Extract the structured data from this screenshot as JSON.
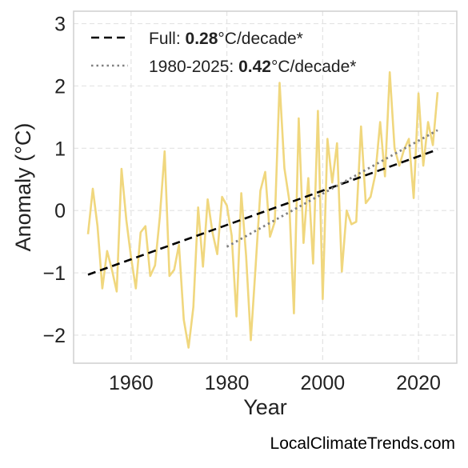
{
  "chart_data": {
    "type": "line",
    "xlabel": "Year",
    "ylabel": "Anomaly (°C)",
    "xlim": [
      1948,
      2028
    ],
    "ylim": [
      -2.45,
      3.2
    ],
    "xticks": [
      1960,
      1980,
      2000,
      2020
    ],
    "yticks": [
      3,
      2,
      1,
      0,
      -1,
      -2
    ],
    "ytick_labels": [
      "3",
      "2",
      "1",
      "0",
      "−1",
      "−2"
    ],
    "grid": true,
    "legend_position": "top-left",
    "series": [
      {
        "style": "solid-thin",
        "color": "#f0d77e",
        "x": [
          1951,
          1952,
          1953,
          1954,
          1955,
          1956,
          1957,
          1958,
          1959,
          1960,
          1961,
          1962,
          1963,
          1964,
          1965,
          1966,
          1967,
          1968,
          1969,
          1970,
          1971,
          1972,
          1973,
          1974,
          1975,
          1976,
          1977,
          1978,
          1979,
          1980,
          1981,
          1982,
          1983,
          1984,
          1985,
          1986,
          1987,
          1988,
          1989,
          1990,
          1991,
          1992,
          1993,
          1994,
          1995,
          1996,
          1997,
          1998,
          1999,
          2000,
          2001,
          2002,
          2003,
          2004,
          2005,
          2006,
          2007,
          2008,
          2009,
          2010,
          2011,
          2012,
          2013,
          2014,
          2015,
          2016,
          2017,
          2018,
          2019,
          2020,
          2021,
          2022,
          2023,
          2024
        ],
        "y": [
          -0.38,
          0.35,
          -0.25,
          -1.25,
          -0.65,
          -0.95,
          -1.3,
          0.67,
          -0.15,
          -0.75,
          -1.25,
          -0.35,
          -0.25,
          -1.05,
          -0.88,
          -0.1,
          0.95,
          -1.05,
          -0.95,
          -0.55,
          -1.75,
          -2.2,
          -1.55,
          0.05,
          -0.9,
          0.18,
          -0.35,
          -0.7,
          0.22,
          0.08,
          -0.4,
          -1.7,
          0.28,
          -0.72,
          -2.08,
          -0.9,
          0.32,
          0.62,
          -0.42,
          -0.18,
          2.05,
          0.68,
          0.18,
          -1.65,
          1.48,
          -0.52,
          0.52,
          -0.85,
          1.6,
          -1.42,
          1.15,
          0.45,
          1.08,
          -0.98,
          0.0,
          -0.22,
          -0.18,
          1.35,
          0.12,
          0.22,
          0.58,
          1.42,
          0.55,
          2.22,
          1.0,
          0.72,
          0.98,
          1.15,
          0.2,
          1.88,
          0.72,
          1.42,
          1.05,
          1.9
        ]
      },
      {
        "name": "Full: 0.28°C/decade*",
        "style": "dashed",
        "color": "#000000",
        "x": [
          1951,
          2024
        ],
        "y": [
          -1.03,
          0.98
        ],
        "rate": "0.28"
      },
      {
        "name": "1980-2025: 0.42°C/decade*",
        "style": "dotted",
        "color": "#808080",
        "x": [
          1980,
          2024
        ],
        "y": [
          -0.58,
          1.29
        ],
        "rate": "0.42"
      }
    ],
    "legend": [
      {
        "prefix": "Full: ",
        "value": "0.28",
        "suffix": "°C/decade*"
      },
      {
        "prefix": "1980-2025: ",
        "value": "0.42",
        "suffix": "°C/decade*"
      }
    ]
  },
  "credit": "LocalClimateTrends.com"
}
